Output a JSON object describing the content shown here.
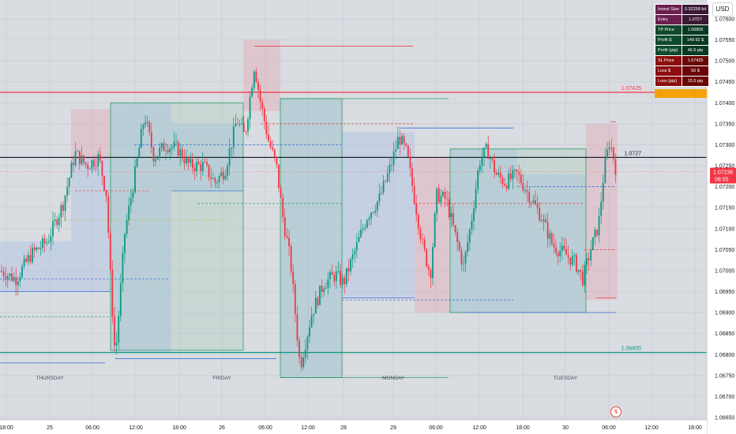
{
  "chart_data": {
    "type": "candlestick",
    "symbol_currency": "USD",
    "y_range": [
      1.0665,
      1.0763
    ],
    "y_ticks": [
      "1.07600",
      "1.07550",
      "1.07500",
      "1.07450",
      "1.07400",
      "1.07350",
      "1.07300",
      "1.07250",
      "1.07200",
      "1.07150",
      "1.07100",
      "1.07050",
      "1.07000",
      "1.06950",
      "1.06900",
      "1.06850",
      "1.06800",
      "1.06750",
      "1.06700",
      "1.06650"
    ],
    "x_ticks": [
      "18:00",
      "25",
      "06:00",
      "12:00",
      "18:00",
      "26",
      "06:00",
      "12:00",
      "28",
      "29",
      "06:00",
      "12:00",
      "18:00",
      "30",
      "06:00",
      "12:00",
      "18:00"
    ],
    "day_labels": [
      "THURSDAY",
      "FRIDAY",
      "MONDAY",
      "TUESDAY"
    ],
    "horizontal_levels": [
      {
        "price": 1.07425,
        "label": "1.07425",
        "color": "#f23645"
      },
      {
        "price": 1.0727,
        "label": "1.0727",
        "color": "#131722"
      },
      {
        "price": 1.06805,
        "label": "1.06805",
        "color": "#089981"
      }
    ],
    "current_price": {
      "value": "1.07236",
      "countdown": "08:55",
      "price": 1.07236
    },
    "close_path": [
      [
        0,
        1.07
      ],
      [
        20,
        1.0698
      ],
      [
        40,
        1.0704
      ],
      [
        60,
        1.0707
      ],
      [
        80,
        1.0716
      ],
      [
        95,
        1.0728
      ],
      [
        110,
        1.0725
      ],
      [
        125,
        1.0727
      ],
      [
        135,
        1.0718
      ],
      [
        140,
        1.0698
      ],
      [
        146,
        1.0679
      ],
      [
        158,
        1.0709
      ],
      [
        170,
        1.0722
      ],
      [
        183,
        1.0737
      ],
      [
        195,
        1.0727
      ],
      [
        210,
        1.073
      ],
      [
        225,
        1.0729
      ],
      [
        240,
        1.0725
      ],
      [
        258,
        1.0725
      ],
      [
        272,
        1.0721
      ],
      [
        285,
        1.0724
      ],
      [
        300,
        1.0736
      ],
      [
        310,
        1.0732
      ],
      [
        322,
        1.0749
      ],
      [
        330,
        1.074
      ],
      [
        340,
        1.0731
      ],
      [
        350,
        1.0725
      ],
      [
        358,
        1.0713
      ],
      [
        368,
        1.0702
      ],
      [
        380,
        1.0677
      ],
      [
        395,
        1.069
      ],
      [
        410,
        1.0697
      ],
      [
        425,
        1.0699
      ],
      [
        435,
        1.0697
      ],
      [
        450,
        1.0705
      ],
      [
        465,
        1.0713
      ],
      [
        480,
        1.0717
      ],
      [
        495,
        1.0725
      ],
      [
        505,
        1.0732
      ],
      [
        515,
        1.0728
      ],
      [
        525,
        1.0717
      ],
      [
        535,
        1.0706
      ],
      [
        545,
        1.0699
      ],
      [
        553,
        1.0718
      ],
      [
        565,
        1.0717
      ],
      [
        577,
        1.0708
      ],
      [
        587,
        1.0701
      ],
      [
        597,
        1.0712
      ],
      [
        607,
        1.0726
      ],
      [
        617,
        1.0729
      ],
      [
        628,
        1.0723
      ],
      [
        640,
        1.0721
      ],
      [
        655,
        1.0723
      ],
      [
        670,
        1.0718
      ],
      [
        685,
        1.0713
      ],
      [
        700,
        1.0706
      ],
      [
        715,
        1.0704
      ],
      [
        728,
        1.0702
      ],
      [
        738,
        1.0698
      ],
      [
        748,
        1.0705
      ],
      [
        758,
        1.0711
      ],
      [
        765,
        1.0724
      ],
      [
        772,
        1.0731
      ],
      [
        778,
        1.0726
      ],
      [
        782,
        1.0722
      ]
    ],
    "position_zones": [
      {
        "kind": "profit",
        "x0": 0,
        "x1": 90,
        "entry": 1.0707,
        "tp": 1.0695,
        "sl": 0
      },
      {
        "kind": "profit",
        "x0": 90,
        "x1": 140,
        "entry": 1.0727,
        "tp": 1.0695,
        "sl": 1.07385
      },
      {
        "kind": "loss",
        "x0": 90,
        "x1": 140,
        "entry": 1.07385,
        "tp": 0,
        "sl": 1.07385
      },
      {
        "kind": "profit",
        "x0": 140,
        "x1": 217,
        "entry": 1.074,
        "tp": 1.06805
      },
      {
        "kind": "profit",
        "x0": 217,
        "x1": 308,
        "entry": 1.0735,
        "tp": 1.0719
      },
      {
        "kind": "loss",
        "x0": 308,
        "x1": 355,
        "entry": 1.0755,
        "tp": 1.0738
      },
      {
        "kind": "profit",
        "x0": 355,
        "x1": 433,
        "entry": 1.0741,
        "tp": 1.06745
      },
      {
        "kind": "profit",
        "x0": 433,
        "x1": 525,
        "entry": 1.0733,
        "tp": 1.06935
      },
      {
        "kind": "loss",
        "x0": 525,
        "x1": 570,
        "entry": 1.0727,
        "tp": 1.069
      },
      {
        "kind": "profit",
        "x0": 570,
        "x1": 655,
        "entry": 1.0729,
        "tp": 1.069
      },
      {
        "kind": "profit",
        "x0": 655,
        "x1": 742,
        "entry": 1.0723,
        "tp": 1.069
      },
      {
        "kind": "loss",
        "x0": 742,
        "x1": 782,
        "entry": 1.0735,
        "tp": 1.0693
      }
    ],
    "position_tool": {
      "rows": [
        {
          "label": "Invest Size",
          "value": "0.32258 lot",
          "style": "dark"
        },
        {
          "label": "Entry",
          "value": "1.0727",
          "style": "dark"
        },
        {
          "label": "TP Price",
          "value": "1.06805",
          "style": "green"
        },
        {
          "label": "Profit $",
          "value": "149.92 $",
          "style": "green"
        },
        {
          "label": "Profit (pip)",
          "value": "46.5 pip",
          "style": "green"
        },
        {
          "label": "SL Price",
          "value": "1.07425",
          "style": "red"
        },
        {
          "label": "Loss $",
          "value": "50 $",
          "style": "red"
        },
        {
          "label": "Loss (pip)",
          "value": "15.5 pip",
          "style": "red"
        }
      ]
    },
    "grid": true,
    "legend": "none"
  },
  "ui": {
    "currency_button": "USD"
  }
}
